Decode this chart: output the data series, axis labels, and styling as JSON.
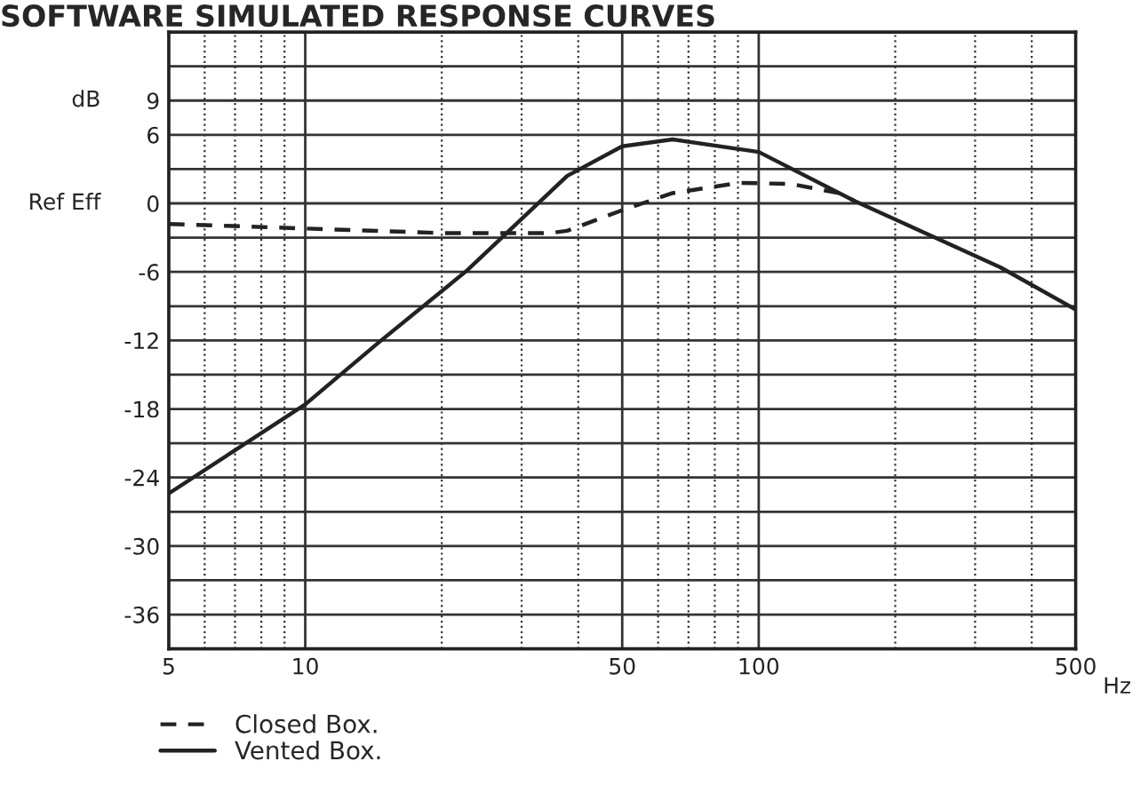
{
  "chart_data": {
    "type": "line",
    "title": "SOFTWARE SIMULATED RESPONSE CURVES",
    "xlabel": "Hz",
    "ylabel": "dB",
    "annotations": [
      "Ref Eff"
    ],
    "log": "x",
    "xlim": [
      5,
      500
    ],
    "ylim": [
      -39,
      15
    ],
    "xticks": [
      5,
      {
        "value": 6,
        "label": null
      },
      {
        "value": 7,
        "label": null
      },
      {
        "value": 8,
        "label": null
      },
      {
        "value": 9,
        "label": null
      },
      10,
      {
        "value": 20,
        "label": null
      },
      {
        "value": 30,
        "label": null
      },
      {
        "value": 40,
        "label": null
      },
      50,
      {
        "value": 60,
        "label": null
      },
      {
        "value": 70,
        "label": null
      },
      {
        "value": 80,
        "label": null
      },
      {
        "value": 90,
        "label": null
      },
      100,
      {
        "value": 200,
        "label": null
      },
      {
        "value": 300,
        "label": null
      },
      {
        "value": 400,
        "label": null
      },
      500
    ],
    "yticks": [
      {
        "value": 12,
        "label": null
      },
      9,
      6,
      {
        "value": 3,
        "label": null
      },
      0,
      {
        "value": -3,
        "label": null
      },
      -6,
      {
        "value": -9,
        "label": null
      },
      -12,
      {
        "value": -15,
        "label": null
      },
      -18,
      {
        "value": -21,
        "label": null
      },
      -24,
      {
        "value": -27,
        "label": null
      },
      -30,
      {
        "value": -33,
        "label": null
      },
      -36
    ],
    "grid": true,
    "legend": "bottom",
    "marker": "none",
    "series": [
      {
        "name": "Closed Box.",
        "color": "#222222",
        "line_style": "dashed",
        "x": [
          5,
          10,
          20,
          34.6,
          37.8,
          50,
          64.6,
          90.6,
          118,
          150,
          163
        ],
        "values": [
          -1.8,
          -2.2,
          -2.6,
          -2.6,
          -2.4,
          -0.6,
          0.9,
          1.8,
          1.7,
          0.9,
          0.2
        ]
      },
      {
        "name": "Vented Box.",
        "color": "#222222",
        "line_style": "solid",
        "x": [
          5,
          10,
          14.5,
          22.7,
          37.8,
          50,
          64.6,
          100,
          163,
          341,
          500
        ],
        "values": [
          -25.4,
          -17.6,
          -12.2,
          -5.9,
          2.4,
          5.0,
          5.6,
          4.5,
          0.2,
          -5.6,
          -9.3
        ]
      }
    ]
  }
}
